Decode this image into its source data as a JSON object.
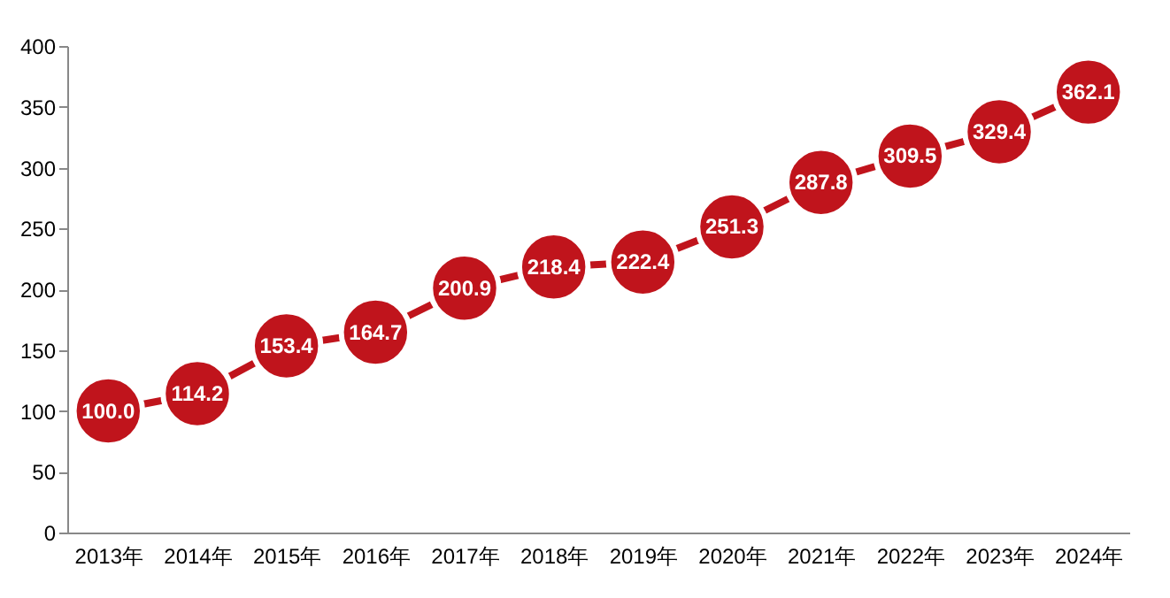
{
  "chart_data": {
    "type": "line",
    "categories": [
      "2013年",
      "2014年",
      "2015年",
      "2016年",
      "2017年",
      "2018年",
      "2019年",
      "2020年",
      "2021年",
      "2022年",
      "2023年",
      "2024年"
    ],
    "series": [
      {
        "color": "#c0141c",
        "values": [
          100.0,
          114.2,
          153.4,
          164.7,
          200.9,
          218.4,
          222.4,
          251.3,
          287.8,
          309.5,
          329.4,
          362.1
        ],
        "value_labels": [
          "100.0",
          "114.2",
          "153.4",
          "164.7",
          "200.9",
          "218.4",
          "222.4",
          "251.3",
          "287.8",
          "309.5",
          "329.4",
          "362.1"
        ]
      }
    ],
    "ylim": [
      0,
      400
    ],
    "yticks": [
      0,
      50,
      100,
      150,
      200,
      250,
      300,
      350,
      400
    ],
    "grid": false,
    "legend": false,
    "marker": "circle",
    "line_style": "solid"
  }
}
